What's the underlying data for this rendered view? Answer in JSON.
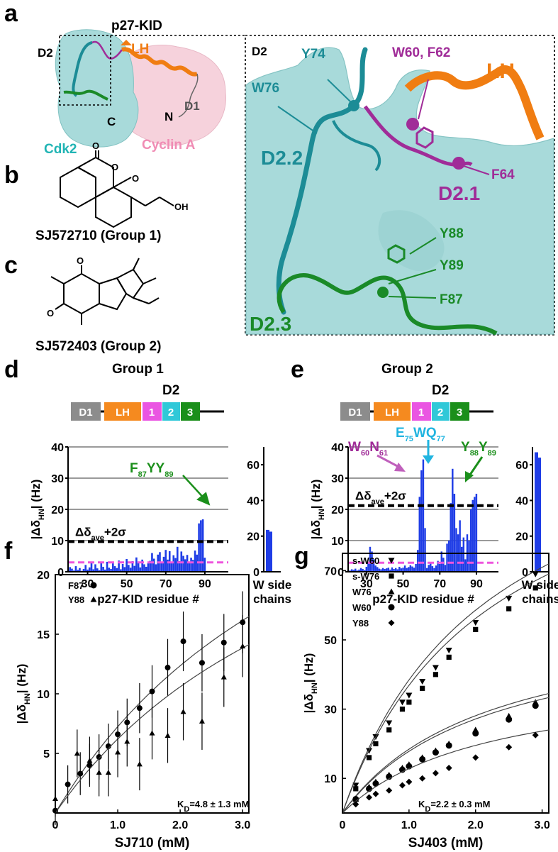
{
  "panels": {
    "a": {
      "letter": "a",
      "title": "p27-KID",
      "label_D2": "D2",
      "label_LH": "LH",
      "label_C": "C",
      "label_N": "N",
      "label_D1": "D1",
      "label_cdk2": "Cdk2",
      "label_cyclin": "Cyclin A",
      "zoom_label_D2": "D2",
      "zoom_labels": {
        "Y74": "Y74",
        "W76": "W76",
        "W60F62": "W60, F62",
        "LH": "LH",
        "D22": "D2.2",
        "D21": "D2.1",
        "F64": "F64",
        "Y88": "Y88",
        "Y89": "Y89",
        "F87": "F87",
        "D23": "D2.3"
      }
    },
    "b": {
      "letter": "b",
      "compound": "SJ572710 (Group 1)"
    },
    "c": {
      "letter": "c",
      "compound": "SJ572403 (Group 2)"
    },
    "d": {
      "letter": "d",
      "title": "Group 1",
      "domain_header": "D2",
      "domains": [
        "D1",
        "LH",
        "1",
        "2",
        "3"
      ],
      "ylabel": "|ΔδHN| (Hz)",
      "xlabel": "p27-KID residue #",
      "side_xlabel_1": "W side",
      "side_xlabel_2": "chains",
      "threshold_label": "Δδave+2σ",
      "annotation": "F87YY89",
      "yticks": [
        "0",
        "10",
        "20",
        "30",
        "40"
      ],
      "xticks": [
        "30",
        "50",
        "70",
        "90"
      ],
      "side_yticks": [
        "0",
        "20",
        "40",
        "60"
      ]
    },
    "e": {
      "letter": "e",
      "title": "Group 2",
      "domain_header": "D2",
      "domains": [
        "D1",
        "LH",
        "1",
        "2",
        "3"
      ],
      "ylabel": "|ΔδHN| (Hz)",
      "xlabel": "p27-KID residue #",
      "side_xlabel_1": "W side",
      "side_xlabel_2": "chains",
      "threshold_label": "Δδave+2σ",
      "annotations": [
        "W60N61",
        "E75WQ77",
        "Y88Y89"
      ],
      "yticks": [
        "0",
        "10",
        "20",
        "30",
        "40"
      ],
      "xticks": [
        "30",
        "50",
        "70",
        "90"
      ],
      "side_yticks": [
        "0",
        "20",
        "40",
        "60"
      ]
    },
    "f": {
      "letter": "f",
      "legend": [
        "F87",
        "Y88"
      ],
      "kd": "KD=4.8 ± 1.3 mM",
      "xlabel": "SJ710 (mM)",
      "ylabel": "|ΔδHN| (Hz)",
      "xticks": [
        "0",
        "1.0",
        "2.0",
        "3.0"
      ],
      "yticks": [
        "5",
        "10",
        "15",
        "20"
      ]
    },
    "g": {
      "letter": "g",
      "legend": [
        "s-W60",
        "s-W76",
        "W76",
        "W60",
        "Y88"
      ],
      "kd": "KD=2.2 ± 0.3 mM",
      "xlabel": "SJ403 (mM)",
      "ylabel": "|ΔδHN| (Hz)",
      "xticks": [
        "0",
        "1.0",
        "2.0",
        "3.0"
      ],
      "yticks": [
        "10",
        "30",
        "50",
        "70"
      ]
    }
  },
  "colors": {
    "bar": "#1f3de6",
    "threshold": "#000000",
    "mean": "#ee55dd",
    "D1": "#8c8c8c",
    "LH": "#f58a1f",
    "D21": "#ea55e2",
    "D22": "#30c8d8",
    "D23": "#1b8f1b",
    "cdk2": "#a8dada",
    "cyclin": "#f6d2dc",
    "teal": "#1c8c96",
    "purple": "#a02c98",
    "green": "#1a8a28",
    "orange": "#f07d12"
  },
  "chart_data": [
    {
      "type": "bar",
      "panel": "d",
      "title": "Group 1",
      "xlabel": "p27-KID residue #",
      "ylabel": "|ΔδHN| (Hz)",
      "xlim": [
        20,
        102
      ],
      "ylim": [
        0,
        40
      ],
      "x": [
        20,
        21,
        22,
        23,
        24,
        25,
        26,
        27,
        28,
        29,
        30,
        31,
        32,
        33,
        34,
        35,
        36,
        37,
        38,
        39,
        40,
        41,
        42,
        43,
        44,
        45,
        46,
        47,
        48,
        49,
        50,
        51,
        52,
        53,
        54,
        55,
        56,
        57,
        58,
        59,
        60,
        61,
        62,
        63,
        64,
        65,
        66,
        67,
        68,
        69,
        70,
        71,
        72,
        73,
        74,
        75,
        76,
        77,
        78,
        79,
        80,
        81,
        82,
        83,
        84,
        85,
        86,
        87,
        88,
        89,
        90
      ],
      "values": [
        0.5,
        1.5,
        1,
        0.4,
        1.8,
        0.6,
        1.2,
        0.3,
        0.9,
        2.2,
        0.7,
        1.4,
        3.1,
        0.8,
        2.4,
        1.1,
        0.5,
        2.9,
        1.6,
        0.7,
        3.2,
        1.3,
        0.9,
        2.7,
        1.8,
        1.2,
        3.6,
        0.8,
        2.5,
        1.5,
        4.1,
        2.2,
        1.3,
        3.4,
        1.9,
        4.6,
        2.8,
        1.4,
        3.9,
        2.4,
        1.6,
        2.7,
        3.5,
        6,
        4.2,
        2.4,
        5.5,
        6.3,
        3.1,
        4.8,
        7,
        3.9,
        6.6,
        2.8,
        5.3,
        4.4,
        8,
        3.4,
        6.5,
        5.1,
        4,
        5.4,
        2.9,
        4.5,
        3.8,
        6.8,
        5.5,
        15.5,
        16.5,
        16.8,
        4.5
      ],
      "threshold": 9.7,
      "mean": 3.0,
      "annotation": "F87YY89",
      "side_bars": {
        "label": "W side chains",
        "values": [
          23.5,
          22.5
        ],
        "ylim": [
          0,
          70
        ]
      }
    },
    {
      "type": "bar",
      "panel": "e",
      "title": "Group 2",
      "xlabel": "p27-KID residue #",
      "ylabel": "|ΔδHN| (Hz)",
      "xlim": [
        20,
        102
      ],
      "ylim": [
        0,
        40
      ],
      "x": [
        20,
        21,
        22,
        23,
        24,
        25,
        26,
        27,
        28,
        29,
        30,
        31,
        32,
        33,
        34,
        35,
        36,
        37,
        38,
        39,
        40,
        41,
        42,
        43,
        44,
        45,
        46,
        47,
        48,
        49,
        50,
        51,
        52,
        53,
        54,
        55,
        56,
        57,
        58,
        59,
        60,
        61,
        62,
        63,
        64,
        65,
        66,
        67,
        68,
        69,
        70,
        71,
        72,
        73,
        74,
        75,
        76,
        77,
        78,
        79,
        80,
        81,
        82,
        83,
        84,
        85,
        86,
        87,
        88,
        89,
        90
      ],
      "values": [
        0.5,
        0.4,
        0.8,
        0.6,
        1,
        0.4,
        0.7,
        1.2,
        0.9,
        0.5,
        1.6,
        3,
        8,
        6.5,
        4,
        2,
        1.5,
        1,
        0.8,
        1.2,
        0.9,
        1.1,
        1.3,
        0.7,
        1.4,
        0.9,
        1.2,
        0.8,
        1.6,
        1.1,
        1.3,
        2,
        1.2,
        1.5,
        2.1,
        1.7,
        1.3,
        2.5,
        7,
        24,
        32.5,
        36,
        14,
        1.2,
        2.2,
        3,
        1.8,
        1.2,
        2,
        3.5,
        2.5,
        6.5,
        4.5,
        2.2,
        9,
        10,
        22,
        33,
        25,
        14,
        12,
        16.5,
        8,
        11,
        4,
        12,
        10,
        20,
        23,
        24,
        25
      ],
      "threshold": 21.2,
      "mean": 2.9,
      "annotations": [
        "W60N61",
        "E75WQ77",
        "Y88Y89"
      ],
      "side_bars": {
        "label": "W side chains",
        "values": [
          67,
          64
        ],
        "ylim": [
          0,
          70
        ]
      }
    },
    {
      "type": "scatter",
      "panel": "f",
      "xlabel": "SJ710 (mM)",
      "ylabel": "|ΔδHN| (Hz)",
      "xlim": [
        0,
        3.1
      ],
      "ylim": [
        0,
        20
      ],
      "series": [
        {
          "name": "F87",
          "marker": "circle",
          "x": [
            0,
            0.2,
            0.4,
            0.55,
            0.7,
            0.85,
            1,
            1.15,
            1.35,
            1.55,
            1.8,
            2.05,
            2.35,
            2.7,
            3
          ],
          "y": [
            0.2,
            2.4,
            3.3,
            4,
            4.7,
            5.6,
            6.6,
            7.6,
            8.8,
            10.2,
            12.2,
            14.4,
            12.6,
            14.3,
            16
          ],
          "err": [
            1.2,
            1.6,
            1.8,
            1.8,
            1.9,
            1.9,
            2,
            2,
            2.1,
            2.2,
            2.4,
            2.5,
            2.4,
            2.4,
            2.6
          ],
          "fit": {
            "kd": 4.8,
            "bmax": 42
          }
        },
        {
          "name": "Y88",
          "marker": "triangle",
          "x": [
            0,
            0.35,
            0.55,
            0.7,
            0.85,
            1,
            1.15,
            1.35,
            1.55,
            1.8,
            2.05,
            2.35,
            2.7,
            3
          ],
          "y": [
            1.2,
            5,
            4.4,
            3.4,
            3.4,
            5.1,
            6,
            4.1,
            6.7,
            6.5,
            8.5,
            7.7,
            11.4,
            14
          ],
          "err": [
            1.5,
            2,
            2,
            2,
            2,
            2.1,
            2.1,
            2.2,
            2.2,
            2.3,
            2.4,
            2.4,
            2.5,
            2.6
          ],
          "fit": {
            "kd": 4.8,
            "bmax": 36
          }
        }
      ],
      "kd": "KD=4.8 ± 1.3 mM"
    },
    {
      "type": "scatter",
      "panel": "g",
      "xlabel": "SJ403 (mM)",
      "ylabel": "|ΔδHN| (Hz)",
      "xlim": [
        0,
        3.1
      ],
      "ylim": [
        0,
        75
      ],
      "series": [
        {
          "name": "s-W60",
          "marker": "triangle-down",
          "x": [
            0.2,
            0.4,
            0.5,
            0.7,
            0.9,
            1,
            1.2,
            1.4,
            1.6,
            2,
            2.5,
            2.9
          ],
          "y": [
            8,
            18,
            22,
            26,
            32,
            34,
            38,
            42,
            47,
            55,
            62,
            69
          ],
          "fit": {
            "kd": 2.2,
            "bmax": 123
          }
        },
        {
          "name": "s-W76",
          "marker": "square",
          "x": [
            0.2,
            0.4,
            0.5,
            0.7,
            0.9,
            1,
            1.2,
            1.4,
            1.6,
            2,
            2.5,
            2.9
          ],
          "y": [
            7,
            16,
            20,
            24,
            30,
            32,
            36,
            40,
            45,
            53,
            59,
            65
          ],
          "fit": {
            "kd": 2.2,
            "bmax": 118
          }
        },
        {
          "name": "W76",
          "marker": "triangle",
          "x": [
            0.2,
            0.4,
            0.5,
            0.7,
            0.9,
            1,
            1.2,
            1.4,
            1.6,
            2,
            2.5,
            2.9
          ],
          "y": [
            4,
            7.5,
            9,
            11,
            13,
            14,
            16,
            18,
            20,
            24,
            28,
            32
          ],
          "fit": {
            "kd": 2.2,
            "bmax": 59
          }
        },
        {
          "name": "W60",
          "marker": "circle",
          "x": [
            0.2,
            0.4,
            0.5,
            0.7,
            0.9,
            1,
            1.2,
            1.4,
            1.6,
            2,
            2.5,
            2.9
          ],
          "y": [
            4,
            7,
            8.5,
            10.5,
            12.5,
            13.5,
            15.5,
            17.5,
            19.5,
            23,
            27,
            31
          ],
          "fit": {
            "kd": 2.2,
            "bmax": 57
          }
        },
        {
          "name": "Y88",
          "marker": "diamond",
          "x": [
            0.2,
            0.4,
            0.5,
            0.7,
            0.9,
            1,
            1.2,
            1.4,
            1.6,
            2,
            2.5,
            2.9
          ],
          "y": [
            2.5,
            4.5,
            5.5,
            6.5,
            8,
            9,
            10,
            11.5,
            13,
            16,
            19,
            22.5
          ],
          "fit": {
            "kd": 2.2,
            "bmax": 41
          }
        }
      ],
      "kd": "KD=2.2 ± 0.3 mM"
    }
  ]
}
